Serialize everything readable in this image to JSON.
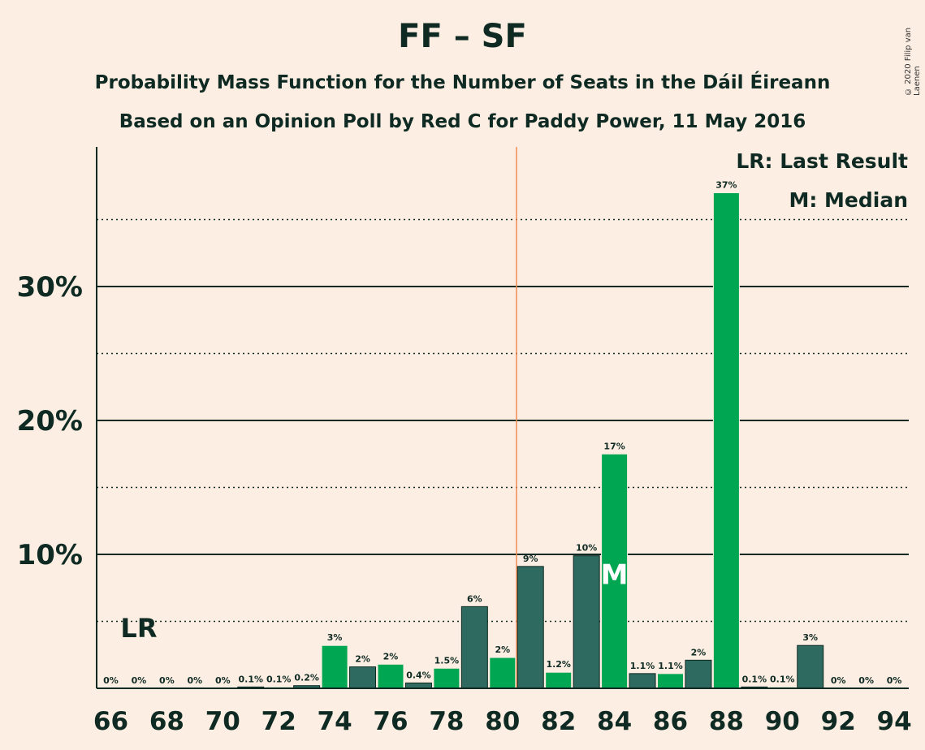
{
  "header": {
    "title": "FF – SF",
    "subtitle1": "Probability Mass Function for the Number of Seats in the Dáil Éireann",
    "subtitle2": "Based on an Opinion Poll by Red C for Paddy Power, 11 May 2016",
    "copyright": "© 2020 Filip van Laenen"
  },
  "legend": {
    "lr": "LR: Last Result",
    "median": "M: Median"
  },
  "colors": {
    "background": "#fdeee3",
    "bar_dark": "#2e6a60",
    "bar_green": "#00a651",
    "majority_line": "#f08c50",
    "text": "#0e2a22"
  },
  "chart_data": {
    "type": "bar",
    "title": "FF – SF",
    "xlabel": "",
    "ylabel": "",
    "ylim": [
      0,
      40
    ],
    "y_ticks": [
      10,
      20,
      30
    ],
    "y_tick_labels": [
      "10%",
      "20%",
      "30%"
    ],
    "y_minor_gridlines": [
      5,
      15,
      25,
      35
    ],
    "x_tick_labels": [
      "66",
      "68",
      "70",
      "72",
      "74",
      "76",
      "78",
      "80",
      "82",
      "84",
      "86",
      "88",
      "90",
      "92",
      "94"
    ],
    "categories": [
      66,
      67,
      68,
      69,
      70,
      71,
      72,
      73,
      74,
      75,
      76,
      77,
      78,
      79,
      80,
      81,
      82,
      83,
      84,
      85,
      86,
      87,
      88,
      89,
      90,
      91,
      92,
      93,
      94
    ],
    "values": [
      0,
      0,
      0,
      0,
      0,
      0.1,
      0.1,
      0.2,
      3.2,
      1.6,
      1.8,
      0.4,
      1.5,
      6.1,
      2.3,
      9.1,
      1.2,
      9.9,
      17.5,
      1.1,
      1.1,
      2.1,
      37.0,
      0.1,
      0.1,
      3.2,
      0,
      0,
      0
    ],
    "labels": [
      "0%",
      "0%",
      "0%",
      "0%",
      "0%",
      "0.1%",
      "0.1%",
      "0.2%",
      "3%",
      "2%",
      "2%",
      "0.4%",
      "1.5%",
      "6%",
      "2%",
      "9%",
      "1.2%",
      "10%",
      "17%",
      "1.1%",
      "1.1%",
      "2%",
      "37%",
      "0.1%",
      "0.1%",
      "3%",
      "0%",
      "0%",
      "0%"
    ],
    "last_result": 67,
    "last_result_label": "LR",
    "median": 84,
    "median_label": "M",
    "majority_threshold": 80.5,
    "grid": true,
    "legend_position": "top-right"
  }
}
